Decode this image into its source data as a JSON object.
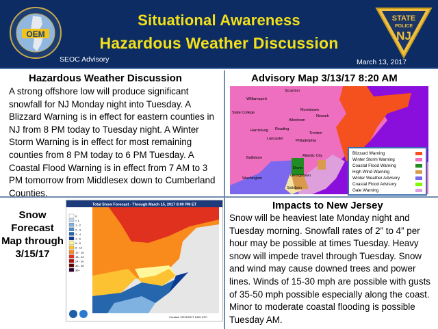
{
  "header": {
    "title_line1": "Situational Awareness",
    "title_line2": "Hazardous Weather Discussion",
    "subtitle": "SEOC Advisory",
    "date": "March 13, 2017",
    "left_logo": {
      "text": "OEM",
      "ring_text": "NEW JERSEY OFFICE OF EMERGENCY MANAGEMENT"
    },
    "right_logo": {
      "line1": "STATE",
      "line2": "POLICE",
      "line3": "NJ"
    }
  },
  "discussion": {
    "title": "Hazardous Weather Discussion",
    "text": "A strong offshore low will produce significant snowfall for NJ Monday night into Tuesday. A Blizzard Warning is in effect for eastern counties in NJ from 8 PM today to Tuesday night. A Winter Storm Warning is in effect for most remaining counties from 8 PM today to 6 PM Tuesday. A Coastal Flood Warning is in effect from 7 AM to 3 PM tomorrow from Middlesex down to Cumberland Counties."
  },
  "advisory_map": {
    "title": "Advisory Map 3/13/17 8:20 AM",
    "cities": [
      "Scranton",
      "Williamsport",
      "State College",
      "Morristown",
      "Newark",
      "Allentown",
      "Harrisburg",
      "Reading",
      "Trenton",
      "Lancaster",
      "Philadelphia",
      "Baltimore",
      "Atlantic City",
      "Dover",
      "Washington",
      "Georgetown",
      "Salisbury"
    ],
    "legend": [
      {
        "label": "Blizzard Warning",
        "color": "#f4511e"
      },
      {
        "label": "Winter Storm Warning",
        "color": "#f06ec0"
      },
      {
        "label": "Coastal Flood Warning",
        "color": "#228b22"
      },
      {
        "label": "High Wind Warning",
        "color": "#d99a4e"
      },
      {
        "label": "Winter Weather Advisory",
        "color": "#7b68ee"
      },
      {
        "label": "Coastal Flood Advisory",
        "color": "#7cfc00"
      },
      {
        "label": "Gale Warning",
        "color": "#dda0dd"
      }
    ]
  },
  "snow_map": {
    "label": "Snow Forecast Map through 3/15/17",
    "title": "Total Snow Forecast - Through March 15, 2017 8:00 PM ET",
    "legend_title": "In Inches",
    "legend": [
      {
        "label": "0",
        "color": "#ffffff"
      },
      {
        "label": "< 1",
        "color": "#bdd7ee"
      },
      {
        "label": "1 - 2",
        "color": "#7fb2e0"
      },
      {
        "label": "2 - 3",
        "color": "#4a8cc9"
      },
      {
        "label": "3 - 4",
        "color": "#2566ad"
      },
      {
        "label": "4 - 6",
        "color": "#0b3a94"
      },
      {
        "label": "6 - 8",
        "color": "#fff79a"
      },
      {
        "label": "8 - 12",
        "color": "#fcc232"
      },
      {
        "label": "12 - 18",
        "color": "#f98a1c"
      },
      {
        "label": "18 - 24",
        "color": "#e0301e"
      },
      {
        "label": "24 - 30",
        "color": "#a80f0f"
      },
      {
        "label": "30 - 36",
        "color": "#600000"
      },
      {
        "label": "36+",
        "color": "#2b0033"
      }
    ],
    "footer": "Created: 03/13/2017 1400 UTC"
  },
  "impacts": {
    "title": "Impacts to New Jersey",
    "text": "Snow will be heaviest late Monday night and Tuesday morning. Snowfall rates of 2” to 4” per hour may be possible at times Tuesday. Heavy snow will impede travel through Tuesday. Snow and wind may cause downed trees and power lines. Winds of 15-30 mph are possible with gusts of 35-50 mph possible especially along the coast. Minor to moderate coastal flooding is possible Tuesday AM."
  }
}
